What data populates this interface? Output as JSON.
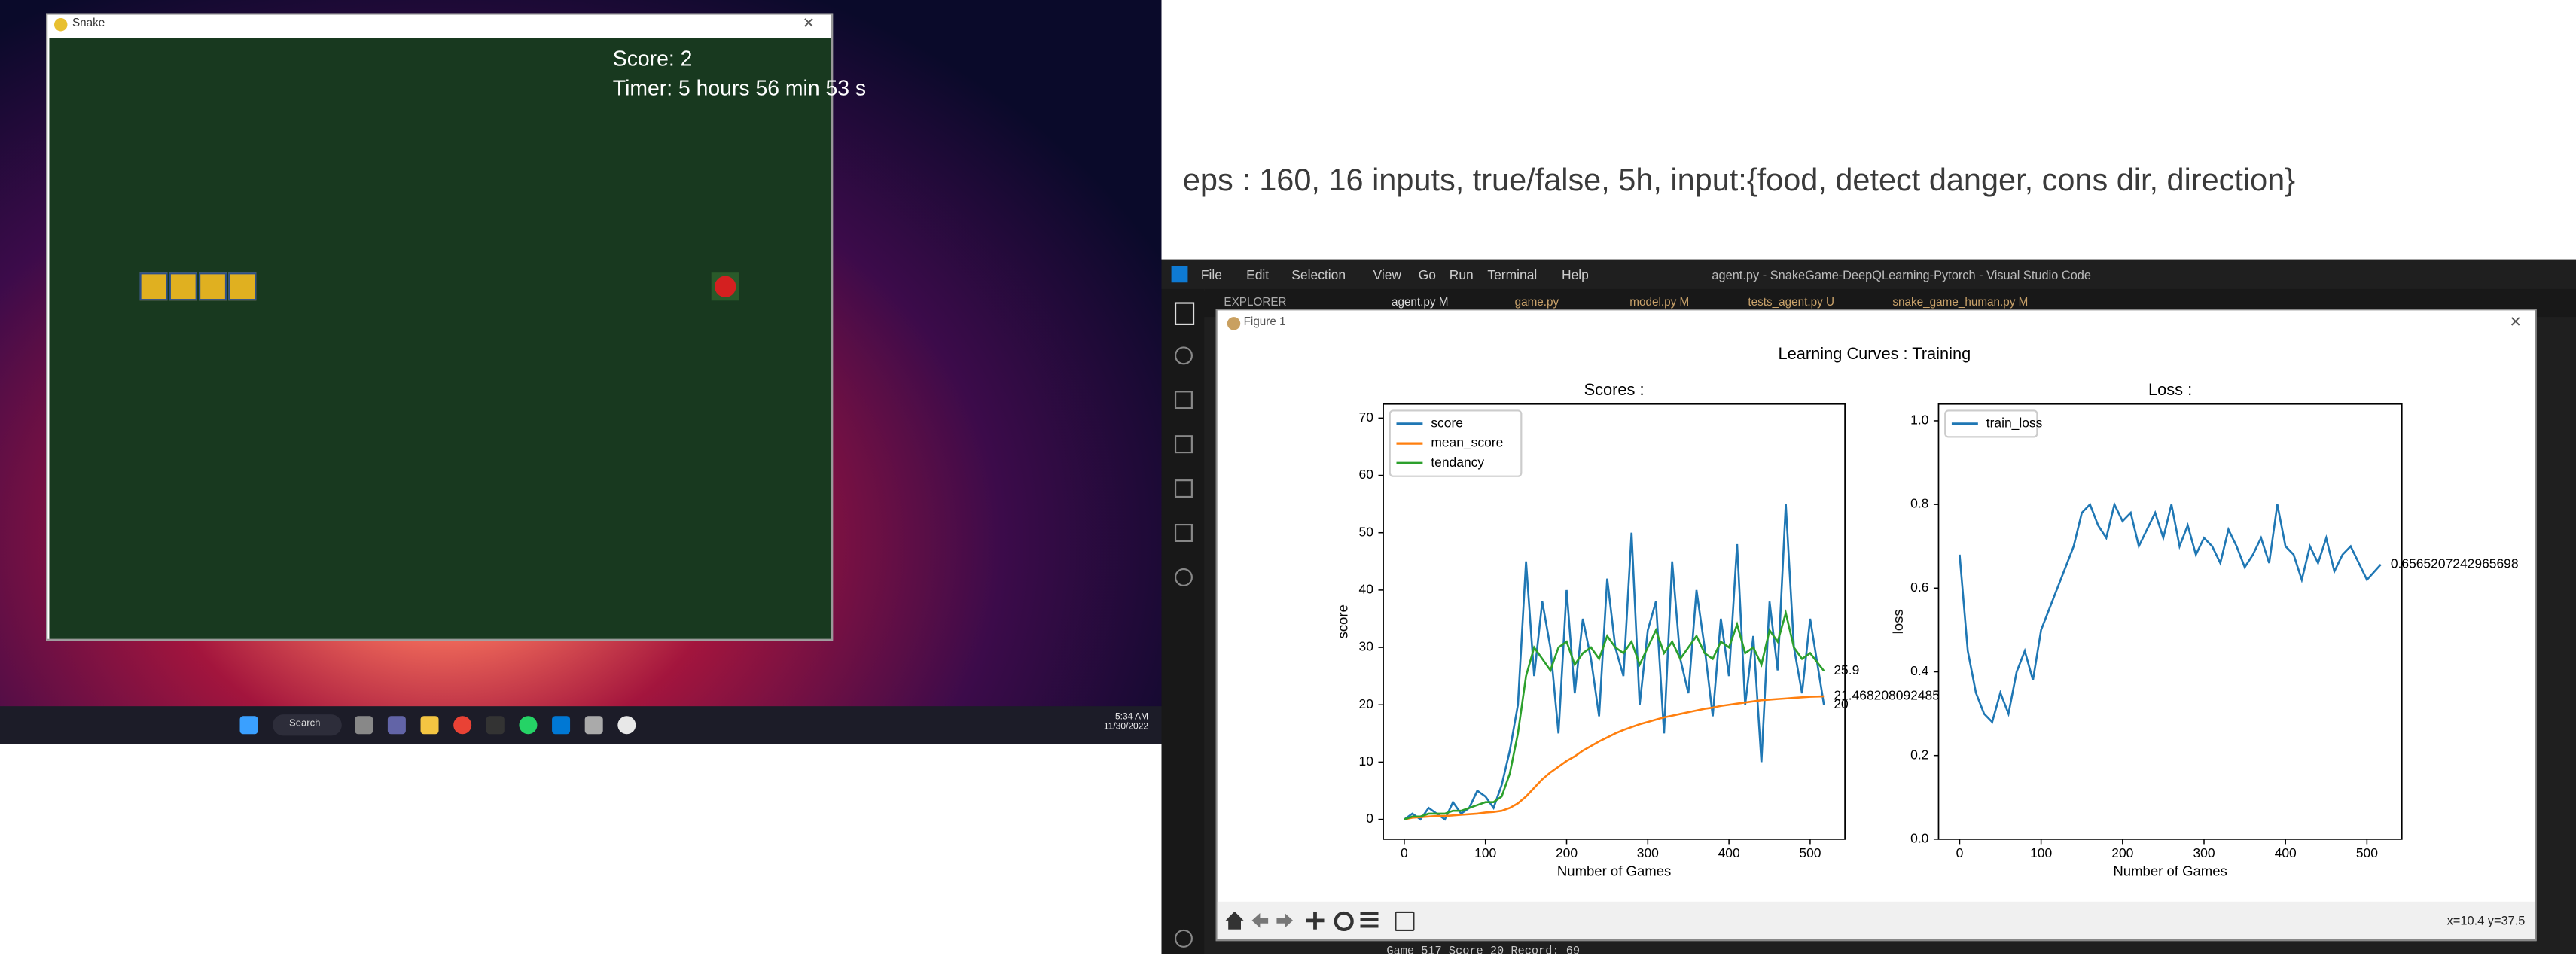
{
  "snake_window": {
    "title": "Snake",
    "score": "Score: 2",
    "timer": "Timer: 5 hours 56 min 53 s"
  },
  "taskbar": {
    "search": "Search",
    "time": "5:34 AM",
    "date": "11/30/2022"
  },
  "note": "eps : 160, 16 inputs, true/false, 5h, input:{food, detect danger, cons dir, direction}",
  "vscode": {
    "menu": [
      "File",
      "Edit",
      "Selection",
      "View",
      "Go",
      "Run",
      "Terminal",
      "Help"
    ],
    "title": "agent.py - SnakeGame-DeepQLearning-Pytorch - Visual Studio Code",
    "explorer": "EXPLORER",
    "tabs": [
      "agent.py M",
      "game.py",
      "model.py M",
      "tests_agent.py U",
      "snake_game_human.py M"
    ],
    "terminal": "Game 517 Score 20 Record: 69"
  },
  "figure": {
    "title": "Figure 1",
    "suptitle": "Learning Curves : Training",
    "status": "x=10.4 y=37.5"
  },
  "chart_data": [
    {
      "type": "line",
      "title": "Scores :",
      "xlabel": "Number of Games",
      "ylabel": "score",
      "legend": "upper left",
      "grid": false,
      "x": [
        0,
        10,
        20,
        30,
        40,
        50,
        60,
        70,
        80,
        90,
        100,
        110,
        120,
        130,
        140,
        150,
        160,
        170,
        180,
        190,
        200,
        210,
        220,
        230,
        240,
        250,
        260,
        270,
        280,
        290,
        300,
        310,
        320,
        330,
        340,
        350,
        360,
        370,
        380,
        390,
        400,
        410,
        420,
        430,
        440,
        450,
        460,
        470,
        480,
        490,
        500,
        517
      ],
      "xlim": [
        -25.85,
        542.85
      ],
      "ylim": [
        -3.45,
        72.45
      ],
      "xticks": [
        0,
        100,
        200,
        300,
        400,
        500
      ],
      "yticks": [
        0,
        10,
        20,
        30,
        40,
        50,
        60,
        70
      ],
      "series": [
        {
          "name": "score",
          "color": "#1f77b4",
          "values": [
            0,
            1,
            0,
            2,
            1,
            0,
            3,
            1,
            2,
            5,
            4,
            2,
            6,
            12,
            20,
            45,
            25,
            38,
            30,
            15,
            40,
            22,
            35,
            28,
            18,
            42,
            30,
            25,
            50,
            20,
            33,
            38,
            15,
            45,
            28,
            22,
            40,
            30,
            18,
            35,
            25,
            48,
            20,
            32,
            10,
            38,
            26,
            55,
            30,
            22,
            35,
            20
          ]
        },
        {
          "name": "mean_score",
          "color": "#ff7f0e",
          "values": [
            0,
            0.3,
            0.4,
            0.5,
            0.6,
            0.6,
            0.7,
            0.8,
            0.9,
            1.0,
            1.2,
            1.3,
            1.5,
            2.0,
            2.8,
            4.0,
            5.5,
            7,
            8.2,
            9.2,
            10.2,
            11,
            12,
            12.8,
            13.6,
            14.3,
            15,
            15.6,
            16.1,
            16.6,
            17,
            17.4,
            17.8,
            18.1,
            18.4,
            18.7,
            19,
            19.3,
            19.5,
            19.8,
            20,
            20.2,
            20.4,
            20.6,
            20.8,
            20.9,
            21,
            21.1,
            21.2,
            21.3,
            21.4,
            21.468208092485
          ]
        },
        {
          "name": "tendancy",
          "color": "#2ca02c",
          "values": [
            0,
            0.5,
            0.5,
            1,
            1,
            1,
            1.5,
            1.5,
            2,
            2.5,
            3,
            3,
            4,
            8,
            15,
            25,
            30,
            28,
            26,
            30,
            31,
            27,
            29,
            30,
            28,
            32,
            30,
            29,
            31,
            27,
            30,
            33,
            29,
            31,
            28,
            30,
            32,
            29,
            28,
            31,
            30,
            34,
            29,
            30,
            27,
            33,
            31,
            36,
            30,
            28,
            29,
            25.9
          ]
        }
      ]
    },
    {
      "type": "line",
      "title": "Loss :",
      "xlabel": "Number of Games",
      "ylabel": "loss",
      "legend": "upper left",
      "grid": false,
      "x": [
        0,
        10,
        20,
        30,
        40,
        50,
        60,
        70,
        80,
        90,
        100,
        110,
        120,
        130,
        140,
        150,
        160,
        170,
        180,
        190,
        200,
        210,
        220,
        230,
        240,
        250,
        260,
        270,
        280,
        290,
        300,
        310,
        320,
        330,
        340,
        350,
        360,
        370,
        380,
        390,
        400,
        410,
        420,
        430,
        440,
        450,
        460,
        470,
        480,
        490,
        500,
        517
      ],
      "xlim": [
        -25.85,
        542.85
      ],
      "ylim": [
        0,
        1.04
      ],
      "xticks": [
        0,
        100,
        200,
        300,
        400,
        500
      ],
      "yticks": [
        {
          "value": 0,
          "label": "0.0"
        },
        0.2,
        0.4,
        0.6,
        0.8,
        {
          "value": 1,
          "label": "1.0"
        }
      ],
      "series": [
        {
          "name": "train_loss",
          "color": "#1f77b4",
          "values": [
            0.68,
            0.45,
            0.35,
            0.3,
            0.28,
            0.35,
            0.3,
            0.4,
            0.45,
            0.38,
            0.5,
            0.55,
            0.6,
            0.65,
            0.7,
            0.78,
            0.8,
            0.75,
            0.72,
            0.8,
            0.76,
            0.78,
            0.7,
            0.74,
            0.78,
            0.72,
            0.8,
            0.7,
            0.75,
            0.68,
            0.72,
            0.7,
            0.66,
            0.74,
            0.7,
            0.65,
            0.68,
            0.72,
            0.66,
            0.8,
            0.7,
            0.68,
            0.62,
            0.7,
            0.66,
            0.72,
            0.64,
            0.68,
            0.7,
            0.66,
            0.62,
            0.6565207242965698
          ]
        }
      ]
    }
  ]
}
